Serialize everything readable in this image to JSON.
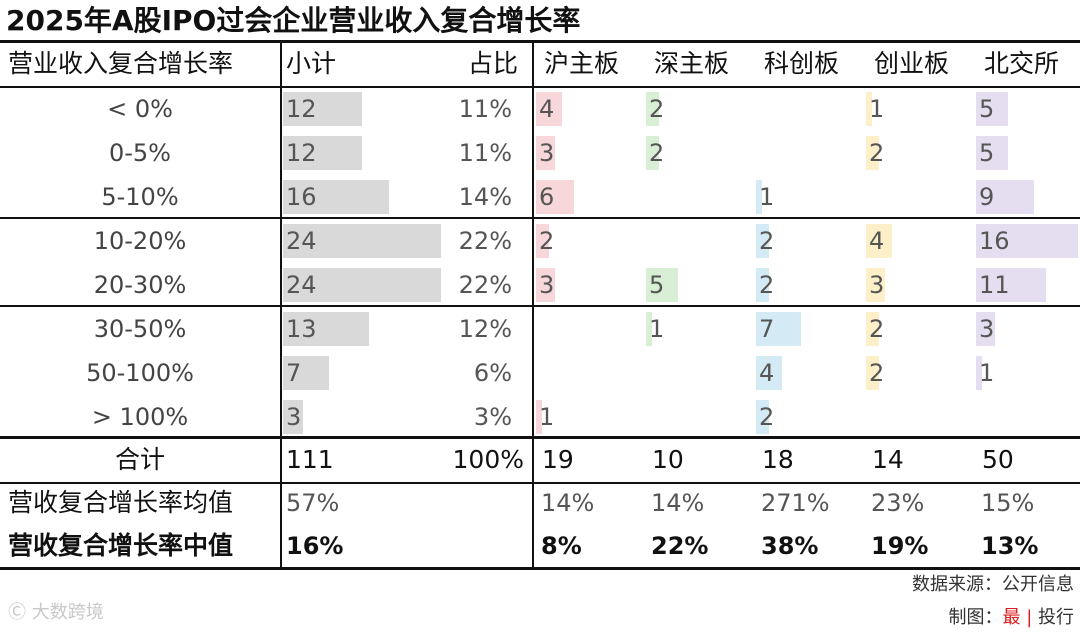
{
  "title": "2025年A股IPO过会企业营业收入复合增长率",
  "headers": {
    "range": "营业收入复合增长率",
    "subtotal": "小计",
    "share": "占比",
    "boards": [
      "沪主板",
      "深主板",
      "科创板",
      "创业板",
      "北交所"
    ]
  },
  "rows": [
    {
      "range": "< 0%",
      "subtotal": "12",
      "share": "11%",
      "boards": [
        "4",
        "2",
        "",
        "1",
        "5"
      ]
    },
    {
      "range": "0-5%",
      "subtotal": "12",
      "share": "11%",
      "boards": [
        "3",
        "2",
        "",
        "2",
        "5"
      ]
    },
    {
      "range": "5-10%",
      "subtotal": "16",
      "share": "14%",
      "boards": [
        "6",
        "",
        "1",
        "",
        "9"
      ]
    },
    {
      "range": "10-20%",
      "subtotal": "24",
      "share": "22%",
      "boards": [
        "2",
        "",
        "2",
        "4",
        "16"
      ]
    },
    {
      "range": "20-30%",
      "subtotal": "24",
      "share": "22%",
      "boards": [
        "3",
        "5",
        "2",
        "3",
        "11"
      ]
    },
    {
      "range": "30-50%",
      "subtotal": "13",
      "share": "12%",
      "boards": [
        "",
        "1",
        "7",
        "2",
        "3"
      ]
    },
    {
      "range": "50-100%",
      "subtotal": "7",
      "share": "6%",
      "boards": [
        "",
        "",
        "4",
        "2",
        "1"
      ]
    },
    {
      "range": "> 100%",
      "subtotal": "3",
      "share": "3%",
      "boards": [
        "1",
        "",
        "2",
        "",
        ""
      ]
    }
  ],
  "total": {
    "label": "合计",
    "subtotal": "111",
    "share": "100%",
    "boards": [
      "19",
      "10",
      "18",
      "14",
      "50"
    ]
  },
  "mean": {
    "label": "营收复合增长率均值",
    "subtotal": "57%",
    "boards": [
      "14%",
      "14%",
      "271%",
      "23%",
      "15%"
    ]
  },
  "median": {
    "label": "营收复合增长率中值",
    "subtotal": "16%",
    "boards": [
      "8%",
      "22%",
      "38%",
      "19%",
      "13%"
    ]
  },
  "colors": {
    "subtotal": "#d9d9d9",
    "boards": [
      "#f7d7d9",
      "#d8efd5",
      "#d4eaf4",
      "#fdf0c8",
      "#e4def0"
    ]
  },
  "footer": {
    "source": "数据来源：公开信息",
    "credit_prefix": "制图：",
    "credit_a": "最",
    "credit_sep": "|",
    "credit_b": "投行"
  },
  "watermark": "大数跨境"
}
